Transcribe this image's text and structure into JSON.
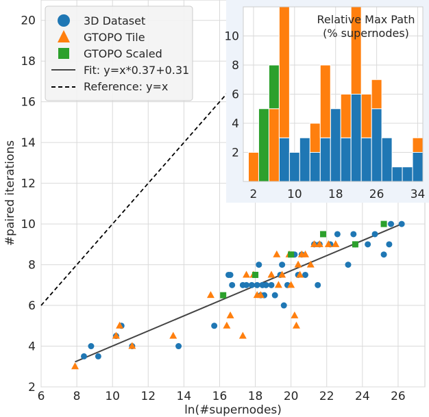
{
  "chart_data": [
    {
      "type": "scatter",
      "xlabel": "ln(#supernodes)",
      "ylabel": "#paired iterations",
      "xlim": [
        6,
        27.5
      ],
      "ylim": [
        2,
        21
      ],
      "xticks": [
        "6",
        "8",
        "10",
        "12",
        "14",
        "16",
        "18",
        "20",
        "22",
        "24",
        "26"
      ],
      "yticks": [
        "2",
        "4",
        "6",
        "8",
        "10",
        "12",
        "14",
        "16",
        "18",
        "20"
      ],
      "grid": true,
      "legend_position": "top-left",
      "legend": [
        {
          "label": "3D Dataset",
          "marker": "circle",
          "color": "#1f77b4"
        },
        {
          "label": "GTOPO Tile",
          "marker": "triangle",
          "color": "#ff7f0e"
        },
        {
          "label": "GTOPO Scaled",
          "marker": "square",
          "color": "#2ca02c"
        },
        {
          "label": "Fit: y=x*0.37+0.31",
          "marker": "solid-line",
          "color": "#444444"
        },
        {
          "label": "Reference: y=x",
          "marker": "dashed-line",
          "color": "#000000"
        }
      ],
      "series": [
        {
          "name": "3D Dataset",
          "color": "#1f77b4",
          "points": [
            [
              8.4,
              3.5
            ],
            [
              8.8,
              4.0
            ],
            [
              9.2,
              3.5
            ],
            [
              10.2,
              4.5
            ],
            [
              10.5,
              5.0
            ],
            [
              11.1,
              4.0
            ],
            [
              13.7,
              4.0
            ],
            [
              15.7,
              5.0
            ],
            [
              16.5,
              7.5
            ],
            [
              16.6,
              7.5
            ],
            [
              16.7,
              7.0
            ],
            [
              17.3,
              7.0
            ],
            [
              17.5,
              7.0
            ],
            [
              17.8,
              7.0
            ],
            [
              18.0,
              7.5
            ],
            [
              18.1,
              7.0
            ],
            [
              18.2,
              8.0
            ],
            [
              18.3,
              6.5
            ],
            [
              18.4,
              7.0
            ],
            [
              18.5,
              6.5
            ],
            [
              18.6,
              7.0
            ],
            [
              18.9,
              7.0
            ],
            [
              19.1,
              6.5
            ],
            [
              19.4,
              7.5
            ],
            [
              19.5,
              8.0
            ],
            [
              19.6,
              6.0
            ],
            [
              19.8,
              7.0
            ],
            [
              20.2,
              8.5
            ],
            [
              20.4,
              7.5
            ],
            [
              20.6,
              8.5
            ],
            [
              20.8,
              7.5
            ],
            [
              21.3,
              9.0
            ],
            [
              21.5,
              7.0
            ],
            [
              21.6,
              9.0
            ],
            [
              22.2,
              9.0
            ],
            [
              22.6,
              9.5
            ],
            [
              23.2,
              8.0
            ],
            [
              23.5,
              9.5
            ],
            [
              23.6,
              9.0
            ],
            [
              24.3,
              9.0
            ],
            [
              24.7,
              9.5
            ],
            [
              25.2,
              8.5
            ],
            [
              25.5,
              9.0
            ],
            [
              25.6,
              10.0
            ],
            [
              26.2,
              10.0
            ]
          ]
        },
        {
          "name": "GTOPO Tile",
          "color": "#ff7f0e",
          "points": [
            [
              7.9,
              3.0
            ],
            [
              10.2,
              4.5
            ],
            [
              10.4,
              5.0
            ],
            [
              11.1,
              4.0
            ],
            [
              13.4,
              4.5
            ],
            [
              15.5,
              6.5
            ],
            [
              16.4,
              5.0
            ],
            [
              16.6,
              5.5
            ],
            [
              17.3,
              4.5
            ],
            [
              17.5,
              7.5
            ],
            [
              17.9,
              7.5
            ],
            [
              18.1,
              6.5
            ],
            [
              18.3,
              6.5
            ],
            [
              18.9,
              7.5
            ],
            [
              19.2,
              8.5
            ],
            [
              19.3,
              7.0
            ],
            [
              19.5,
              7.5
            ],
            [
              19.9,
              8.5
            ],
            [
              20.0,
              7.0
            ],
            [
              20.2,
              5.5
            ],
            [
              20.3,
              5.0
            ],
            [
              20.4,
              8.0
            ],
            [
              20.5,
              7.5
            ],
            [
              20.6,
              8.5
            ],
            [
              20.8,
              8.5
            ],
            [
              21.1,
              8.0
            ],
            [
              21.3,
              9.0
            ],
            [
              21.6,
              9.0
            ],
            [
              22.1,
              9.0
            ],
            [
              22.5,
              9.0
            ]
          ]
        },
        {
          "name": "GTOPO Scaled",
          "color": "#2ca02c",
          "points": [
            [
              16.2,
              6.5
            ],
            [
              18.0,
              7.5
            ],
            [
              20.0,
              8.5
            ],
            [
              21.8,
              9.5
            ],
            [
              23.6,
              9.0
            ],
            [
              25.2,
              10.0
            ]
          ]
        },
        {
          "name": "Fit: y=x*0.37+0.31",
          "color": "#444444",
          "line": [
            [
              7.9,
              3.23
            ],
            [
              26.2,
              10.0
            ]
          ]
        },
        {
          "name": "Reference: y=x",
          "color": "#000000",
          "line": [
            [
              6,
              6
            ],
            [
              21,
              21
            ]
          ]
        }
      ]
    },
    {
      "type": "bar",
      "title": "Relative Max Path\n(% supernodes)",
      "xlim": [
        0,
        35
      ],
      "ylim": [
        0,
        12
      ],
      "xticks": [
        "2",
        "10",
        "18",
        "26",
        "34"
      ],
      "yticks": [
        "2",
        "4",
        "6",
        "8",
        "10"
      ],
      "bin_width": 2,
      "stacked": true,
      "series": [
        {
          "name": "3D Dataset",
          "color": "#1f77b4",
          "values": [
            {
              "x": 8,
              "v": 3
            },
            {
              "x": 10,
              "v": 2
            },
            {
              "x": 12,
              "v": 3
            },
            {
              "x": 14,
              "v": 2
            },
            {
              "x": 16,
              "v": 3
            },
            {
              "x": 18,
              "v": 5
            },
            {
              "x": 20,
              "v": 3
            },
            {
              "x": 22,
              "v": 6
            },
            {
              "x": 24,
              "v": 3
            },
            {
              "x": 26,
              "v": 5
            },
            {
              "x": 28,
              "v": 3
            },
            {
              "x": 30,
              "v": 1
            },
            {
              "x": 32,
              "v": 1
            },
            {
              "x": 34,
              "v": 2
            }
          ]
        },
        {
          "name": "GTOPO Tile",
          "color": "#ff7f0e",
          "values": [
            {
              "x": 2,
              "v": 2
            },
            {
              "x": 6,
              "v": 5
            },
            {
              "x": 8,
              "v": 9
            },
            {
              "x": 14,
              "v": 2
            },
            {
              "x": 16,
              "v": 5
            },
            {
              "x": 20,
              "v": 3
            },
            {
              "x": 22,
              "v": 6
            },
            {
              "x": 24,
              "v": 3
            },
            {
              "x": 26,
              "v": 2
            },
            {
              "x": 34,
              "v": 1
            }
          ]
        },
        {
          "name": "GTOPO Scaled",
          "color": "#2ca02c",
          "values": [
            {
              "x": 4,
              "v": 5
            },
            {
              "x": 6,
              "v": 3
            }
          ]
        }
      ]
    }
  ]
}
